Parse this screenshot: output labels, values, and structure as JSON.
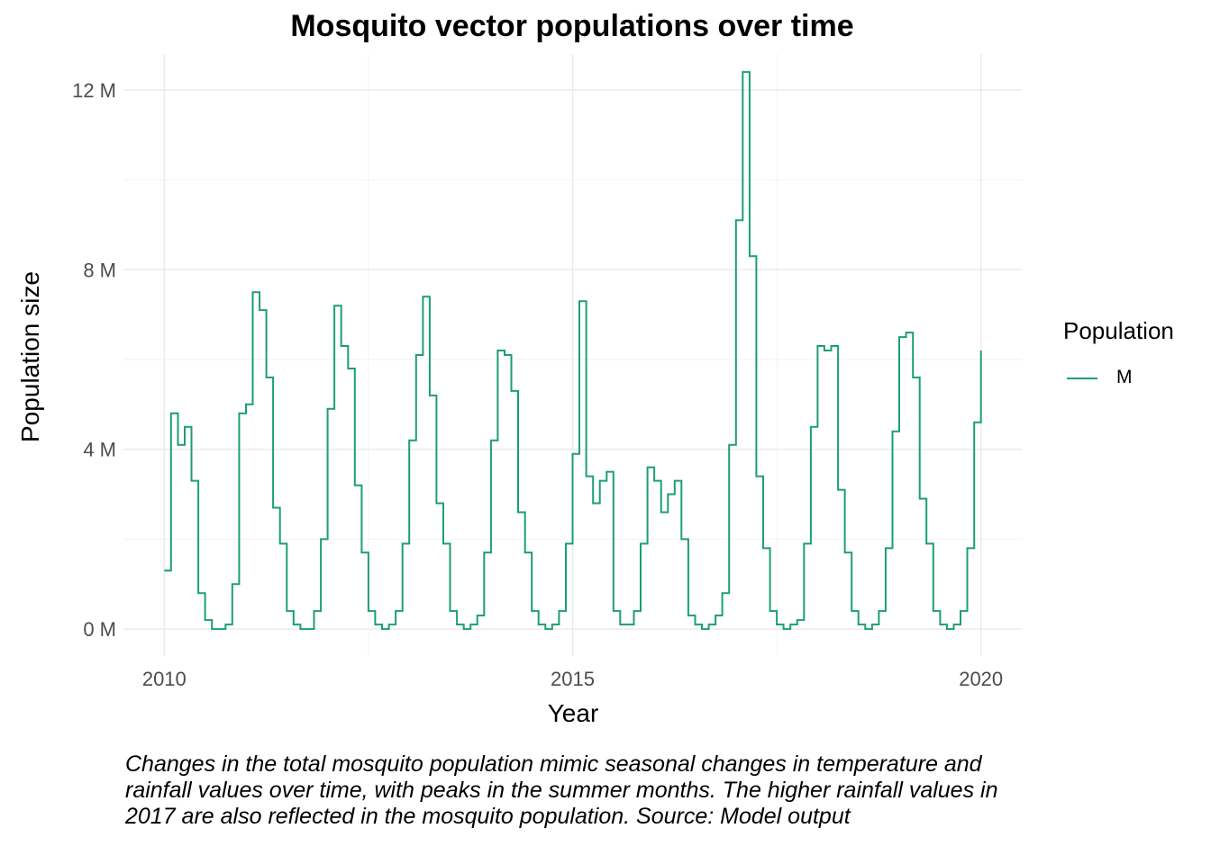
{
  "chart_data": {
    "type": "line",
    "title": "Mosquito vector populations over time",
    "xlabel": "Year",
    "ylabel": "Population size",
    "caption": "Changes in the total mosquito population mimic seasonal changes in temperature and rainfall values over time, with peaks in the summer months. The higher rainfall values in 2017 are also reflected in the mosquito population. Source: Model output",
    "xlim": [
      2009.5,
      2020.5
    ],
    "ylim": [
      -0.6,
      12.8
    ],
    "x_ticks": [
      2010,
      2015,
      2020
    ],
    "x_tick_labels": [
      "2010",
      "2015",
      "2020"
    ],
    "y_ticks": [
      0,
      4,
      8,
      12
    ],
    "y_tick_labels": [
      "0 M",
      "4 M",
      "8 M",
      "12 M"
    ],
    "y_unit": "M",
    "grid": true,
    "legend": {
      "title": "Population",
      "position": "right"
    },
    "step": "hv",
    "series": [
      {
        "name": "M",
        "color": "#1b9e77",
        "x": [
          2010.0,
          2010.083,
          2010.167,
          2010.25,
          2010.333,
          2010.417,
          2010.5,
          2010.583,
          2010.667,
          2010.75,
          2010.833,
          2010.917,
          2011.0,
          2011.083,
          2011.167,
          2011.25,
          2011.333,
          2011.417,
          2011.5,
          2011.583,
          2011.667,
          2011.75,
          2011.833,
          2011.917,
          2012.0,
          2012.083,
          2012.167,
          2012.25,
          2012.333,
          2012.417,
          2012.5,
          2012.583,
          2012.667,
          2012.75,
          2012.833,
          2012.917,
          2013.0,
          2013.083,
          2013.167,
          2013.25,
          2013.333,
          2013.417,
          2013.5,
          2013.583,
          2013.667,
          2013.75,
          2013.833,
          2013.917,
          2014.0,
          2014.083,
          2014.167,
          2014.25,
          2014.333,
          2014.417,
          2014.5,
          2014.583,
          2014.667,
          2014.75,
          2014.833,
          2014.917,
          2015.0,
          2015.083,
          2015.167,
          2015.25,
          2015.333,
          2015.417,
          2015.5,
          2015.583,
          2015.667,
          2015.75,
          2015.833,
          2015.917,
          2016.0,
          2016.083,
          2016.167,
          2016.25,
          2016.333,
          2016.417,
          2016.5,
          2016.583,
          2016.667,
          2016.75,
          2016.833,
          2016.917,
          2017.0,
          2017.083,
          2017.167,
          2017.25,
          2017.333,
          2017.417,
          2017.5,
          2017.583,
          2017.667,
          2017.75,
          2017.833,
          2017.917,
          2018.0,
          2018.083,
          2018.167,
          2018.25,
          2018.333,
          2018.417,
          2018.5,
          2018.583,
          2018.667,
          2018.75,
          2018.833,
          2018.917,
          2019.0,
          2019.083,
          2019.167,
          2019.25,
          2019.333,
          2019.417,
          2019.5,
          2019.583,
          2019.667,
          2019.75,
          2019.833,
          2019.917,
          2020.0
        ],
        "values": [
          1.3,
          4.8,
          4.1,
          4.5,
          3.3,
          0.8,
          0.2,
          0.0,
          0.0,
          0.1,
          1.0,
          4.8,
          5.0,
          7.5,
          7.1,
          5.6,
          2.7,
          1.9,
          0.4,
          0.1,
          0.0,
          0.0,
          0.4,
          2.0,
          4.9,
          7.2,
          6.3,
          5.8,
          3.2,
          1.7,
          0.4,
          0.1,
          0.0,
          0.1,
          0.4,
          1.9,
          4.2,
          6.1,
          7.4,
          5.2,
          2.8,
          1.9,
          0.4,
          0.1,
          0.0,
          0.1,
          0.3,
          1.7,
          4.2,
          6.2,
          6.1,
          5.3,
          2.6,
          1.7,
          0.4,
          0.1,
          0.0,
          0.1,
          0.4,
          1.9,
          3.9,
          7.3,
          3.4,
          2.8,
          3.3,
          3.5,
          0.4,
          0.1,
          0.1,
          0.4,
          1.9,
          3.6,
          3.3,
          2.6,
          3.0,
          3.3,
          2.0,
          0.3,
          0.1,
          0.0,
          0.1,
          0.3,
          0.8,
          4.1,
          9.1,
          12.4,
          8.3,
          3.4,
          1.8,
          0.4,
          0.1,
          0.0,
          0.1,
          0.2,
          1.9,
          4.5,
          6.3,
          6.2,
          6.3,
          3.1,
          1.7,
          0.4,
          0.1,
          0.0,
          0.1,
          0.4,
          1.8,
          4.4,
          6.5,
          6.6,
          5.6,
          2.9,
          1.9,
          0.4,
          0.1,
          0.0,
          0.1,
          0.4,
          1.8,
          4.6,
          6.2
        ]
      }
    ]
  }
}
